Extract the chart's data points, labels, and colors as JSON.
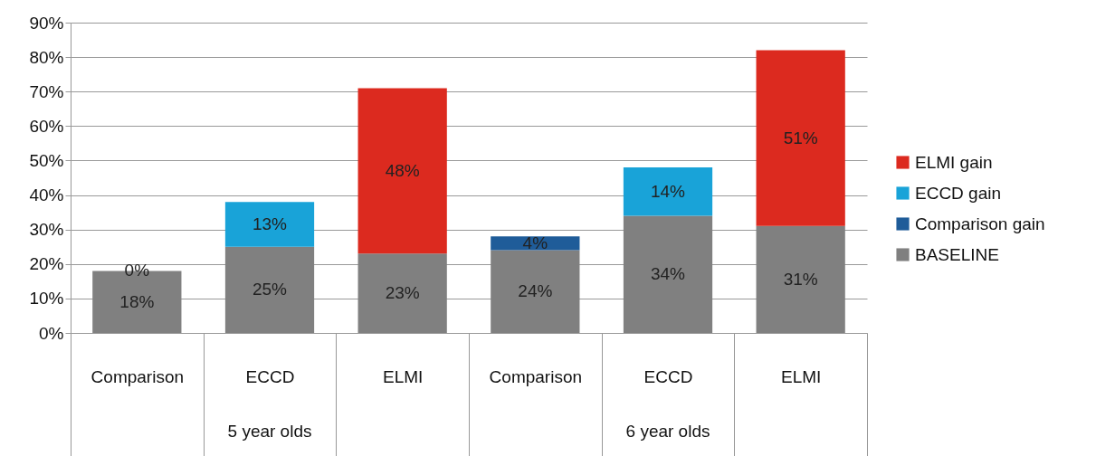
{
  "chart_data": {
    "type": "bar",
    "stacked": true,
    "categories": [
      "Comparison",
      "ECCD",
      "ELMI",
      "Comparison",
      "ECCD",
      "ELMI"
    ],
    "series": [
      {
        "name": "BASELINE",
        "color": "#808080",
        "values": [
          18,
          25,
          23,
          24,
          34,
          31
        ],
        "value_labels": [
          "18%",
          "25%",
          "23%",
          "24%",
          "34%",
          "31%"
        ]
      },
      {
        "name": "Comparison gain",
        "color": "#1f5c99",
        "values": [
          0,
          null,
          null,
          4,
          null,
          null
        ],
        "value_labels": [
          "0%",
          null,
          null,
          "4%",
          null,
          null
        ]
      },
      {
        "name": "ECCD gain",
        "color": "#19a3d8",
        "values": [
          null,
          13,
          null,
          null,
          14,
          null
        ],
        "value_labels": [
          null,
          "13%",
          null,
          null,
          "14%",
          null
        ]
      },
      {
        "name": "ELMI gain",
        "color": "#dc2a1f",
        "values": [
          null,
          null,
          48,
          null,
          null,
          51
        ],
        "value_labels": [
          null,
          null,
          "48%",
          null,
          null,
          "51%"
        ]
      }
    ],
    "ylim": [
      0,
      90
    ],
    "yticks": [
      {
        "value": 0,
        "label": "0%"
      },
      {
        "value": 10,
        "label": "10%"
      },
      {
        "value": 20,
        "label": "20%"
      },
      {
        "value": 30,
        "label": "30%"
      },
      {
        "value": 40,
        "label": "40%"
      },
      {
        "value": 50,
        "label": "50%"
      },
      {
        "value": 60,
        "label": "60%"
      },
      {
        "value": 70,
        "label": "70%"
      },
      {
        "value": 80,
        "label": "80%"
      },
      {
        "value": 90,
        "label": "90%"
      }
    ],
    "grid": "y",
    "legend": "right",
    "annotations": [
      "5 year olds",
      "6 year olds"
    ]
  }
}
